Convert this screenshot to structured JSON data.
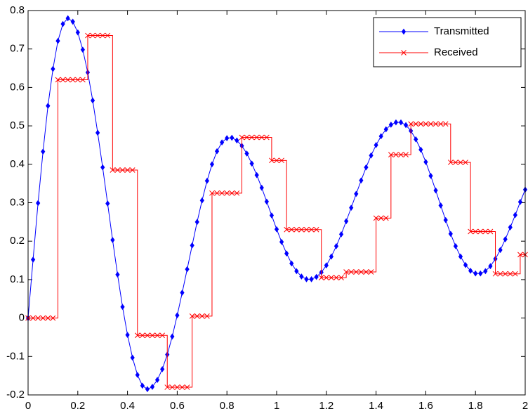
{
  "chart_data": {
    "type": "line",
    "x": [
      0,
      0.02,
      0.04,
      0.06,
      0.08,
      0.1,
      0.12,
      0.14,
      0.16,
      0.18,
      0.2,
      0.22,
      0.24,
      0.26,
      0.28,
      0.3,
      0.32,
      0.34,
      0.36,
      0.38,
      0.4,
      0.42,
      0.44,
      0.46,
      0.48,
      0.5,
      0.52,
      0.54,
      0.56,
      0.58,
      0.6,
      0.62,
      0.64,
      0.66,
      0.68,
      0.7,
      0.72,
      0.74,
      0.76,
      0.78,
      0.8,
      0.82,
      0.84,
      0.86,
      0.88,
      0.9,
      0.92,
      0.94,
      0.96,
      0.98,
      1,
      1.02,
      1.04,
      1.06,
      1.08,
      1.1,
      1.12,
      1.14,
      1.16,
      1.18,
      1.2,
      1.22,
      1.24,
      1.26,
      1.28,
      1.3,
      1.32,
      1.34,
      1.36,
      1.38,
      1.4,
      1.42,
      1.44,
      1.46,
      1.48,
      1.5,
      1.52,
      1.54,
      1.56,
      1.58,
      1.6,
      1.62,
      1.64,
      1.66,
      1.68,
      1.7,
      1.72,
      1.74,
      1.76,
      1.78,
      1.8,
      1.82,
      1.84,
      1.86,
      1.88,
      1.9,
      1.92,
      1.94,
      1.96,
      1.98,
      2
    ],
    "series": [
      {
        "name": "Transmitted",
        "color": "#0000ff",
        "marker": "diamond",
        "drawstyle": "default",
        "values": [
          0,
          0.152,
          0.299,
          0.433,
          0.552,
          0.648,
          0.721,
          0.765,
          0.78,
          0.771,
          0.743,
          0.698,
          0.639,
          0.566,
          0.482,
          0.392,
          0.298,
          0.203,
          0.113,
          0.029,
          -0.044,
          -0.103,
          -0.148,
          -0.176,
          -0.185,
          -0.179,
          -0.161,
          -0.133,
          -0.095,
          -0.048,
          0.007,
          0.066,
          0.127,
          0.189,
          0.25,
          0.306,
          0.357,
          0.4,
          0.434,
          0.457,
          0.468,
          0.469,
          0.462,
          0.448,
          0.428,
          0.402,
          0.372,
          0.339,
          0.303,
          0.267,
          0.231,
          0.198,
          0.168,
          0.142,
          0.122,
          0.108,
          0.101,
          0.101,
          0.107,
          0.119,
          0.137,
          0.16,
          0.187,
          0.218,
          0.252,
          0.287,
          0.323,
          0.358,
          0.392,
          0.423,
          0.45,
          0.473,
          0.491,
          0.503,
          0.509,
          0.509,
          0.502,
          0.487,
          0.465,
          0.438,
          0.406,
          0.37,
          0.332,
          0.293,
          0.255,
          0.219,
          0.187,
          0.16,
          0.138,
          0.123,
          0.116,
          0.116,
          0.122,
          0.135,
          0.154,
          0.177,
          0.205,
          0.236,
          0.268,
          0.302,
          0.334
        ]
      },
      {
        "name": "Received",
        "color": "#ff0000",
        "marker": "x",
        "drawstyle": "steps-post",
        "values": [
          0,
          0,
          0,
          0,
          0,
          0,
          0.62,
          0.62,
          0.62,
          0.62,
          0.62,
          0.62,
          0.735,
          0.735,
          0.735,
          0.735,
          0.735,
          0.385,
          0.385,
          0.385,
          0.385,
          0.385,
          -0.045,
          -0.045,
          -0.045,
          -0.045,
          -0.045,
          -0.045,
          -0.18,
          -0.18,
          -0.18,
          -0.18,
          -0.18,
          0.005,
          0.005,
          0.005,
          0.005,
          0.325,
          0.325,
          0.325,
          0.325,
          0.325,
          0.325,
          0.47,
          0.47,
          0.47,
          0.47,
          0.47,
          0.47,
          0.41,
          0.41,
          0.41,
          0.23,
          0.23,
          0.23,
          0.23,
          0.23,
          0.23,
          0.23,
          0.105,
          0.105,
          0.105,
          0.105,
          0.105,
          0.12,
          0.12,
          0.12,
          0.12,
          0.12,
          0.12,
          0.26,
          0.26,
          0.26,
          0.425,
          0.425,
          0.425,
          0.425,
          0.505,
          0.505,
          0.505,
          0.505,
          0.505,
          0.505,
          0.505,
          0.505,
          0.405,
          0.405,
          0.405,
          0.405,
          0.225,
          0.225,
          0.225,
          0.225,
          0.225,
          0.115,
          0.115,
          0.115,
          0.115,
          0.115,
          0.165,
          0.165
        ]
      }
    ],
    "xlim": [
      0,
      2
    ],
    "xticks": [
      0,
      0.2,
      0.4,
      0.6,
      0.8,
      1,
      1.2,
      1.4,
      1.6,
      1.8,
      2
    ],
    "ylim": [
      -0.2,
      0.8
    ],
    "yticks": [
      -0.2,
      -0.1,
      0,
      0.1,
      0.2,
      0.3,
      0.4,
      0.5,
      0.6,
      0.7,
      0.8
    ],
    "grid": false,
    "legend": "upper right"
  }
}
